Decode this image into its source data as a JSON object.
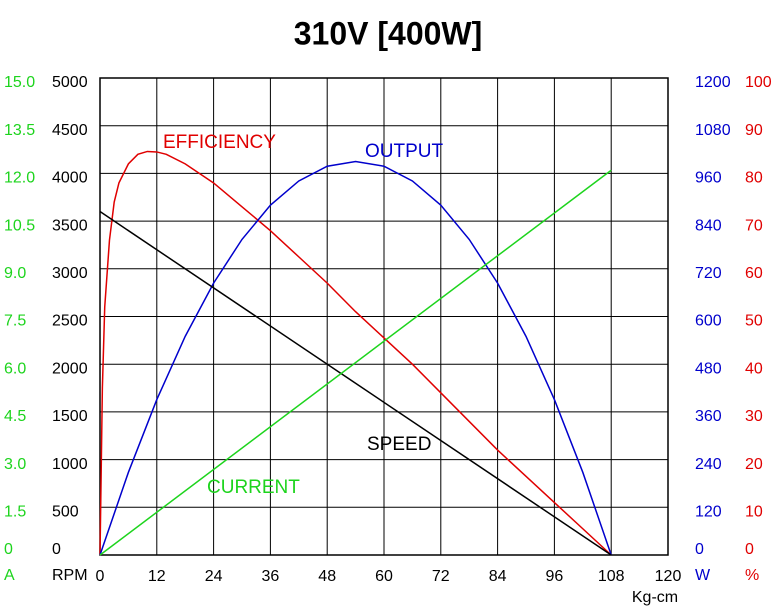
{
  "chart_data": {
    "type": "line",
    "title": "310V [400W]",
    "x_label": "Kg-cm",
    "xlim": [
      0,
      120
    ],
    "xticks": [
      0,
      12,
      24,
      36,
      48,
      60,
      72,
      84,
      96,
      108,
      120
    ],
    "grid": true,
    "y_axes": [
      {
        "label": "A",
        "side": "left",
        "color": "#1dd41d",
        "lim": [
          0,
          15
        ],
        "ticks": [
          0,
          1.5,
          {
            "value": 3,
            "label": "3.0"
          },
          4.5,
          {
            "value": 6,
            "label": "6.0"
          },
          7.5,
          {
            "value": 9,
            "label": "9.0"
          },
          10.5,
          {
            "value": 12,
            "label": "12.0"
          },
          13.5,
          {
            "value": 15,
            "label": "15.0"
          }
        ]
      },
      {
        "label": "RPM",
        "side": "left",
        "color": "#000000",
        "lim": [
          0,
          5000
        ],
        "ticks": [
          0,
          500,
          1000,
          1500,
          2000,
          2500,
          3000,
          3500,
          4000,
          4500,
          5000
        ]
      },
      {
        "label": "W",
        "side": "right",
        "color": "#0000cc",
        "lim": [
          0,
          1200
        ],
        "ticks": [
          0,
          120,
          240,
          360,
          480,
          600,
          720,
          840,
          960,
          1080,
          1200
        ]
      },
      {
        "label": "%",
        "side": "right",
        "color": "#e00000",
        "lim": [
          0,
          100
        ],
        "ticks": [
          0,
          10,
          20,
          30,
          40,
          50,
          60,
          70,
          80,
          90,
          100
        ]
      }
    ],
    "series": [
      {
        "name": "EFFICIENCY",
        "color": "#e00000",
        "axis": 3,
        "x": [
          0,
          0.5,
          1,
          2,
          3,
          4,
          6,
          8,
          10,
          12,
          14,
          18,
          24,
          30,
          36,
          42,
          48,
          54,
          60,
          66,
          72,
          78,
          84,
          90,
          96,
          102,
          108
        ],
        "values": [
          0,
          35,
          52,
          66,
          74,
          78,
          82,
          84,
          84.6,
          84.5,
          84,
          82,
          78,
          73,
          68,
          62.5,
          57,
          51,
          45.5,
          40,
          34,
          28,
          22,
          16.5,
          11,
          5.5,
          0
        ]
      },
      {
        "name": "OUTPUT",
        "color": "#0000cc",
        "axis": 2,
        "x": [
          0,
          6,
          12,
          18,
          24,
          30,
          36,
          42,
          48,
          54,
          60,
          66,
          72,
          78,
          84,
          90,
          96,
          102,
          108
        ],
        "values": [
          0,
          208,
          391,
          550,
          684,
          794,
          880,
          941,
          978,
          990,
          978,
          941,
          880,
          794,
          684,
          550,
          391,
          208,
          0
        ]
      },
      {
        "name": "SPEED",
        "color": "#000000",
        "axis": 1,
        "x": [
          0,
          108
        ],
        "values": [
          3600,
          0
        ]
      },
      {
        "name": "CURRENT",
        "color": "#1dd41d",
        "axis": 0,
        "x": [
          0,
          108
        ],
        "values": [
          0,
          12.1
        ]
      }
    ]
  }
}
